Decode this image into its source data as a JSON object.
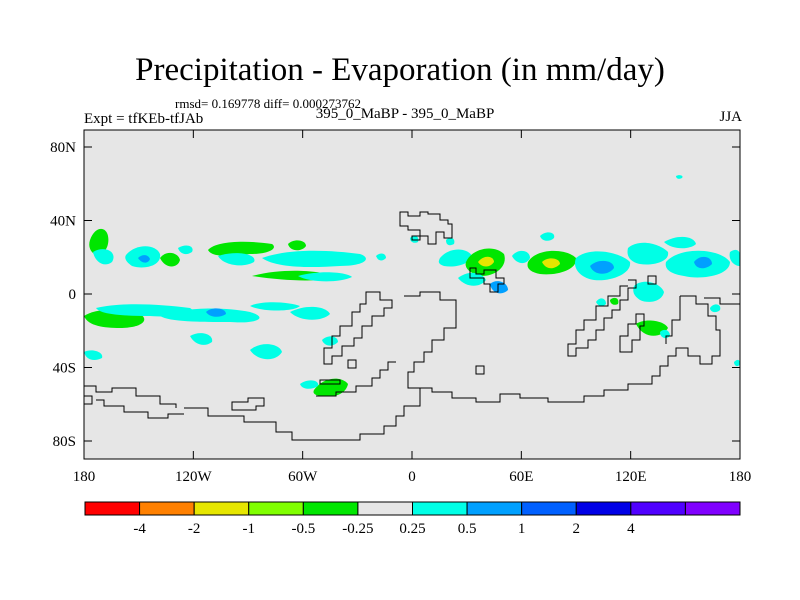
{
  "figure": {
    "title": "Precipitation - Evaporation (in mm/day)",
    "stats": "rmsd= 0.169778 diff= 0.000273762",
    "experiment": "Expt = tfKEb-tfJAb",
    "center_label": "395_0_MaBP - 395_0_MaBP",
    "season": "JJA"
  },
  "map": {
    "background": "#e6e6e6",
    "y_ticks": [
      "80N",
      "40N",
      "0",
      "40S",
      "80S"
    ],
    "x_ticks": [
      "180",
      "120W",
      "60W",
      "0",
      "60E",
      "120E",
      "180"
    ]
  },
  "colorbar": {
    "colors": [
      "#ff0000",
      "#ff8000",
      "#e6e600",
      "#80ff00",
      "#00e600",
      "#e6e6e6",
      "#00ffe6",
      "#00a0ff",
      "#0060ff",
      "#0000e6",
      "#5000ff",
      "#8000ff"
    ],
    "labels": [
      "-4",
      "-2",
      "-1",
      "-0.5",
      "-0.25",
      "0.25",
      "0.5",
      "1",
      "2",
      "4"
    ]
  }
}
